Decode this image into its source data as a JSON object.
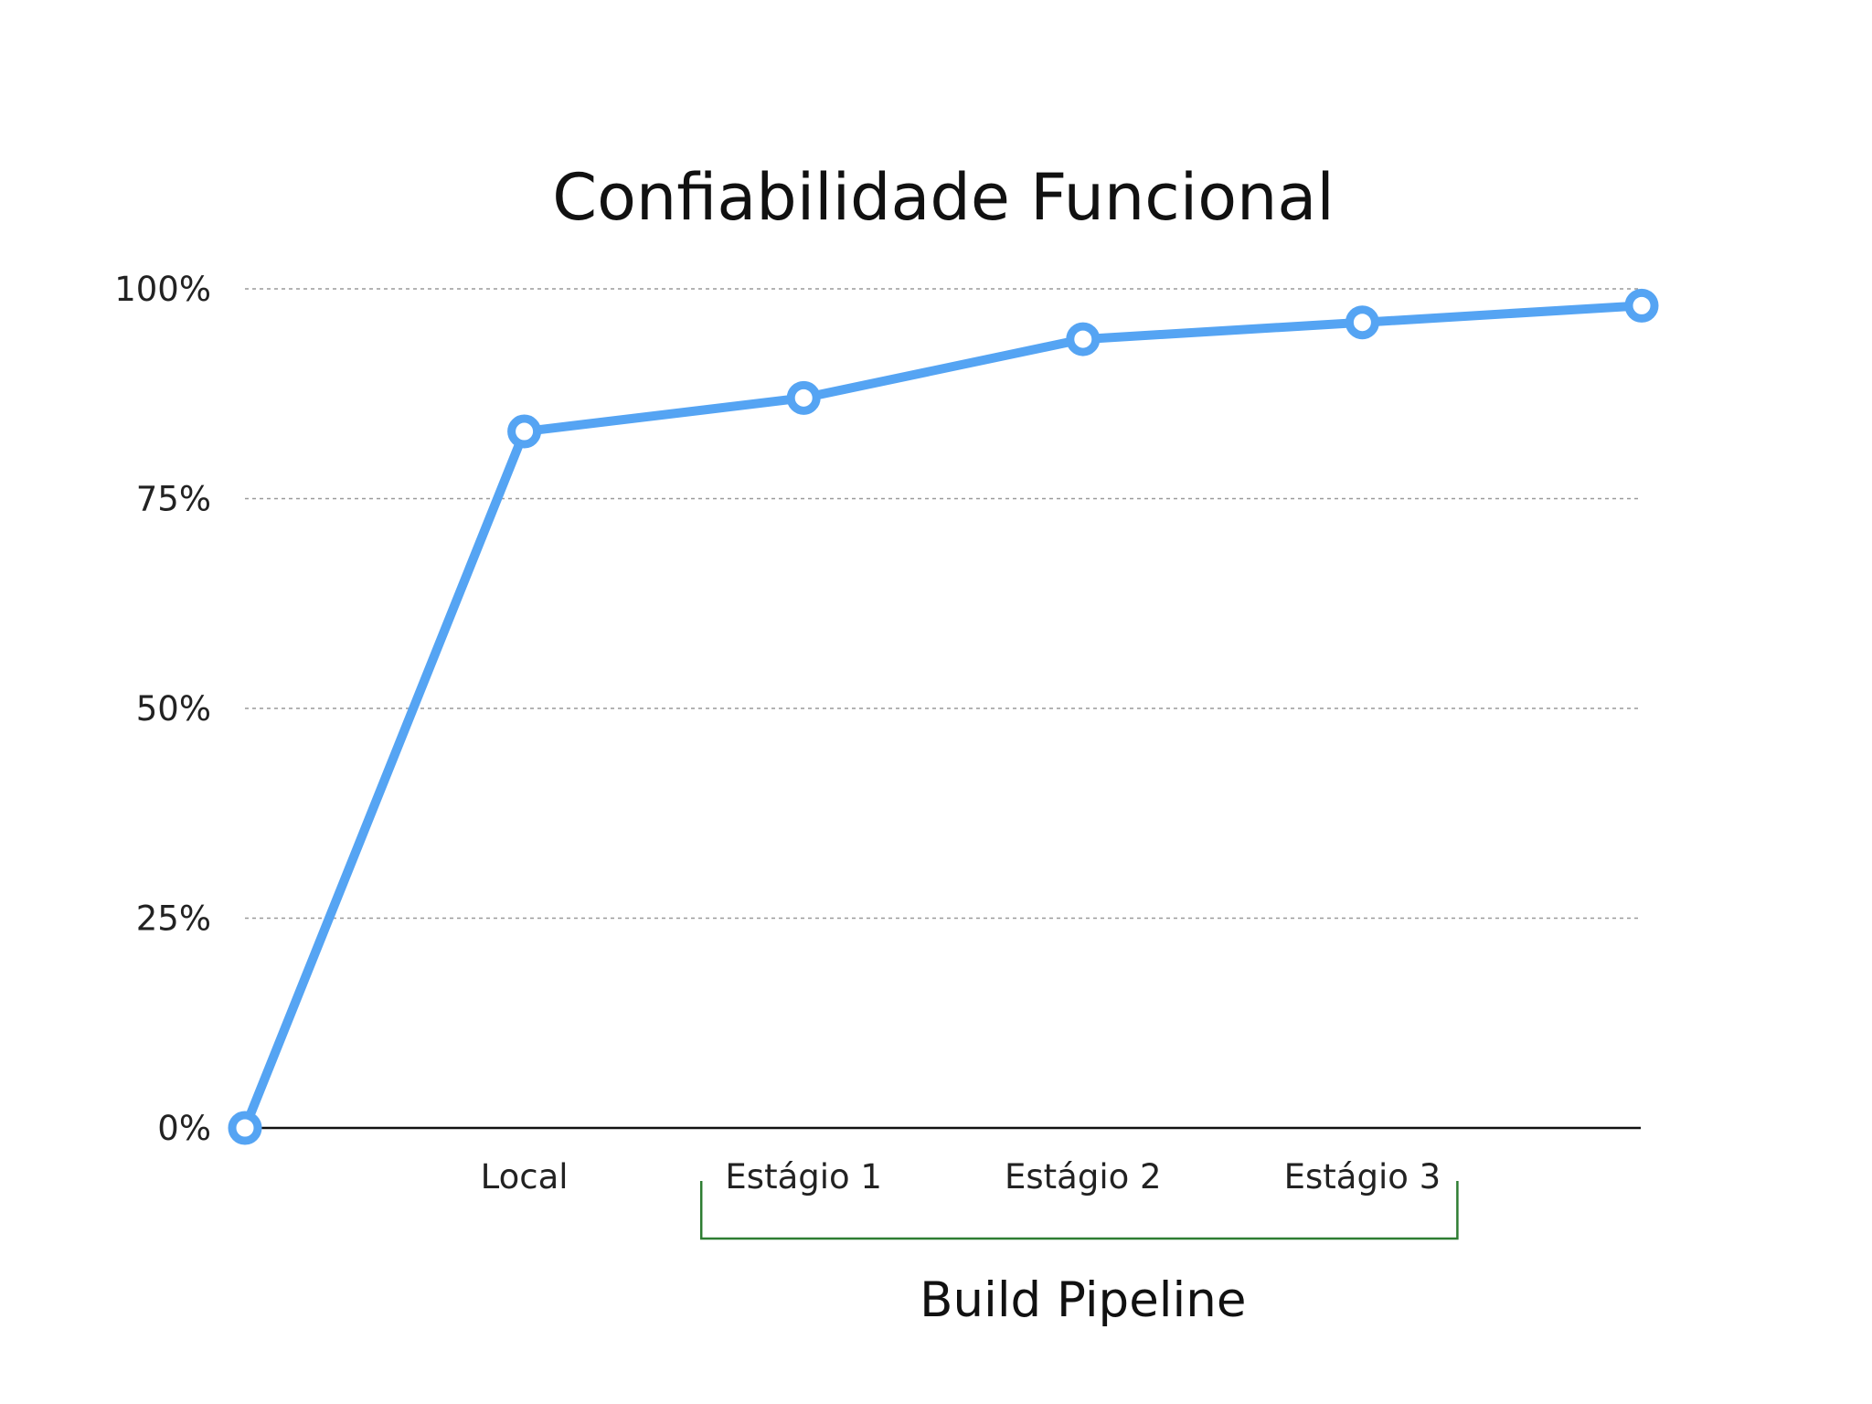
{
  "chart_data": {
    "type": "line",
    "title": "Confiabilidade Funcional",
    "xlabel": "",
    "ylabel": "",
    "ylim": [
      0,
      100
    ],
    "yticks": [
      {
        "value": 0,
        "label": "0%"
      },
      {
        "value": 25,
        "label": "25%"
      },
      {
        "value": 50,
        "label": "50%"
      },
      {
        "value": 75,
        "label": "75%"
      },
      {
        "value": 100,
        "label": "100%"
      }
    ],
    "grid": true,
    "categories": [
      "",
      "Local",
      "Estágio 1",
      "Estágio 2",
      "Estágio 3",
      ""
    ],
    "series": [
      {
        "values": [
          0,
          83,
          87,
          94,
          96,
          98
        ],
        "color": "#55a4f3"
      }
    ],
    "bracket": {
      "label": "Build Pipeline",
      "from_category": 2,
      "to_category": 4,
      "color": "#2e7d32"
    }
  }
}
